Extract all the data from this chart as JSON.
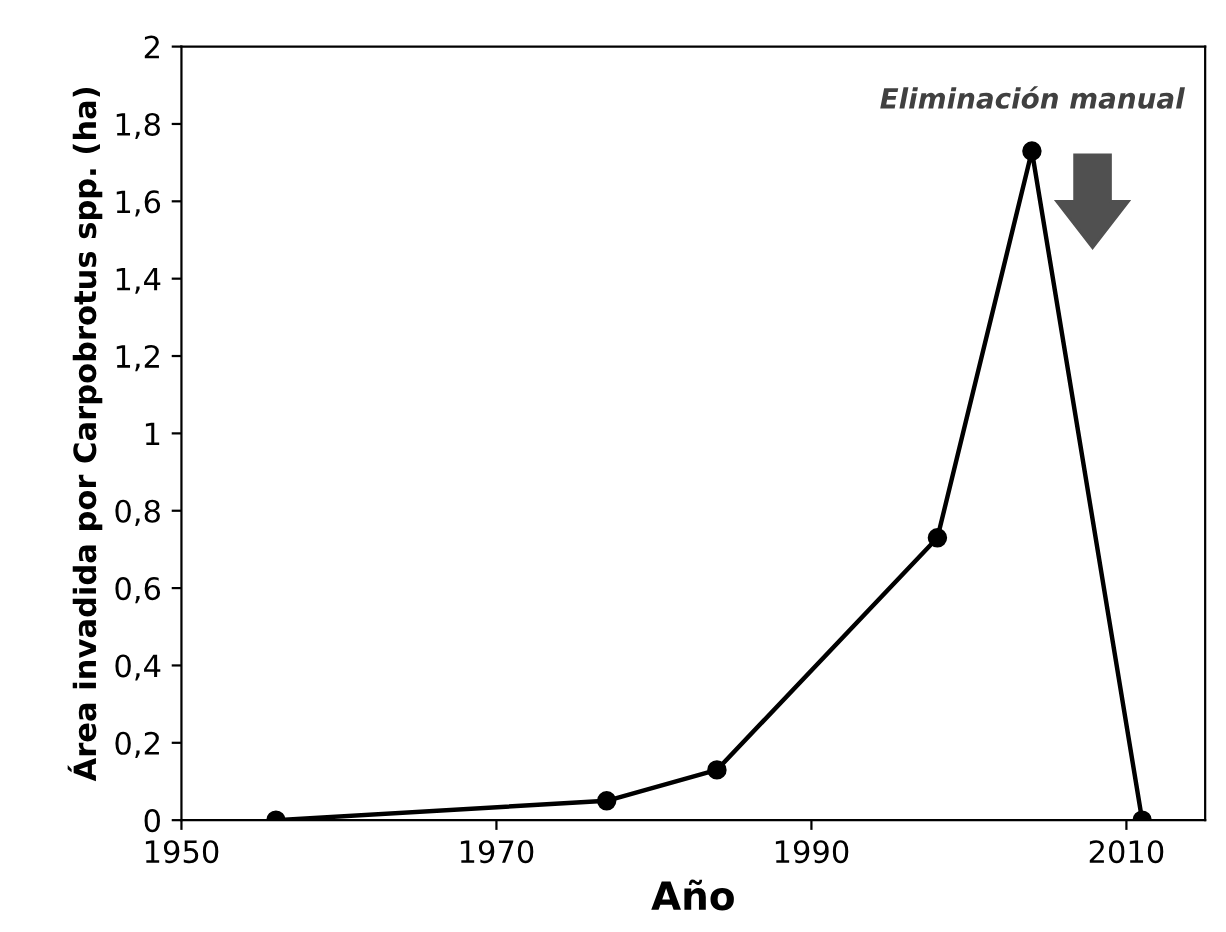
{
  "chart_data": {
    "type": "line",
    "xlabel": "Año",
    "ylabel": "Área invadida por Carpobrotus spp. (ha)",
    "x": [
      1956,
      1977,
      1984,
      1998,
      2004,
      2011
    ],
    "series": [
      {
        "color": "#000000",
        "values": [
          0,
          0.05,
          0.13,
          0.73,
          1.73,
          0
        ]
      }
    ],
    "xlim": [
      1950,
      2015
    ],
    "xticks": [
      1950,
      1970,
      1990,
      2010
    ],
    "ylim": [
      0,
      2
    ],
    "yticks": [
      0,
      {
        "value": 0.2,
        "label": "0,2"
      },
      {
        "value": 0.4,
        "label": "0,4"
      },
      {
        "value": 0.6,
        "label": "0,6"
      },
      {
        "value": 0.8,
        "label": "0,8"
      },
      1,
      {
        "value": 1.2,
        "label": "1,2"
      },
      {
        "value": 1.4,
        "label": "1,4"
      },
      {
        "value": 1.6,
        "label": "1,6"
      },
      {
        "value": 1.8,
        "label": "1,8"
      },
      2
    ],
    "annotations": [
      "Eliminación manual"
    ],
    "marker": "circle",
    "line_style": "solid",
    "grid": false,
    "legend": false
  }
}
